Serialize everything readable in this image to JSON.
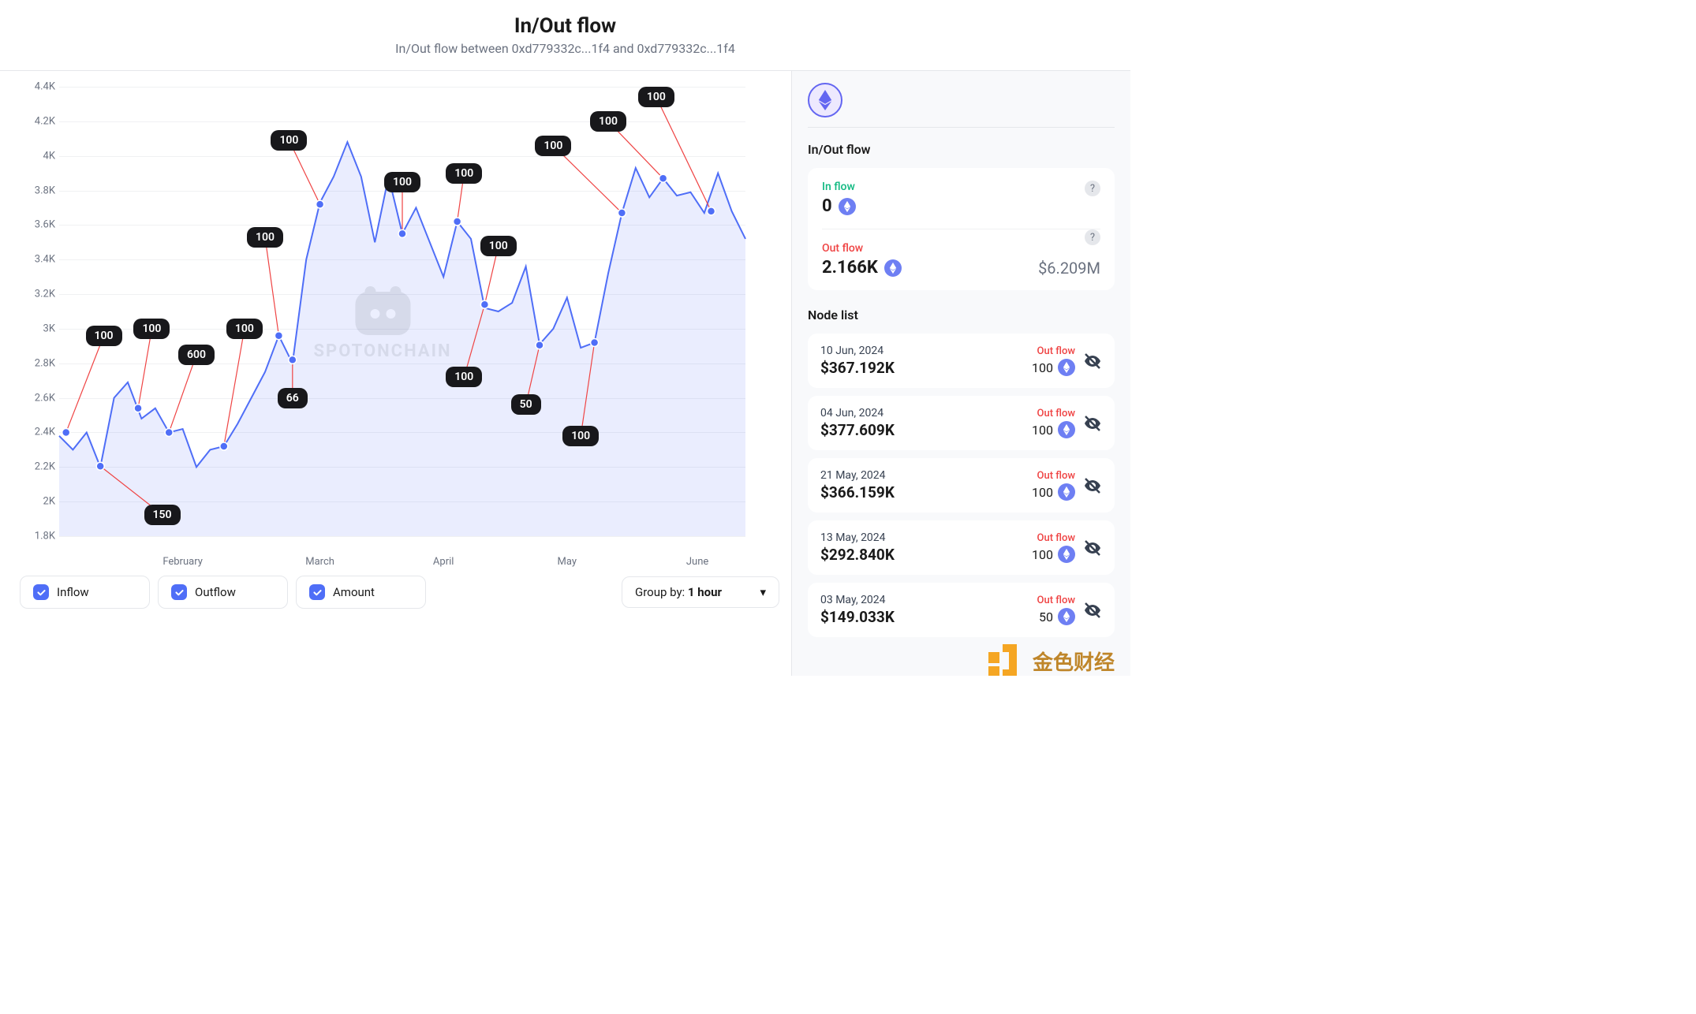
{
  "header": {
    "title": "In/Out flow",
    "subtitle": "In/Out flow between 0xd779332c...1f4 and 0xd779332c...1f4"
  },
  "chart": {
    "type": "line",
    "watermark": "SPOTONCHAIN",
    "y_axis": {
      "min": 1800,
      "max": 4400,
      "step": 200,
      "ticks": [
        "1.8K",
        "2K",
        "2.2K",
        "2.4K",
        "2.6K",
        "2.8K",
        "3K",
        "3.2K",
        "3.4K",
        "3.6K",
        "3.8K",
        "4K",
        "4.2K",
        "4.4K"
      ]
    },
    "x_axis": {
      "ticks": [
        {
          "label": "February",
          "pos": 0.18
        },
        {
          "label": "March",
          "pos": 0.38
        },
        {
          "label": "April",
          "pos": 0.56
        },
        {
          "label": "May",
          "pos": 0.74
        },
        {
          "label": "June",
          "pos": 0.93
        }
      ]
    },
    "line_color": "#4f6ef7",
    "fill_color": "rgba(79,110,247,0.12)",
    "grid_color": "#f0f1f3",
    "marker_color": "#4f6ef7",
    "callout_line_color": "#ef4444",
    "callout_bg": "#18181b",
    "callout_fg": "#ffffff",
    "series": [
      [
        0.0,
        2380
      ],
      [
        0.02,
        2300
      ],
      [
        0.04,
        2400
      ],
      [
        0.06,
        2200
      ],
      [
        0.08,
        2600
      ],
      [
        0.1,
        2690
      ],
      [
        0.12,
        2480
      ],
      [
        0.14,
        2540
      ],
      [
        0.16,
        2400
      ],
      [
        0.18,
        2420
      ],
      [
        0.2,
        2200
      ],
      [
        0.22,
        2300
      ],
      [
        0.24,
        2320
      ],
      [
        0.26,
        2450
      ],
      [
        0.28,
        2600
      ],
      [
        0.3,
        2750
      ],
      [
        0.32,
        2960
      ],
      [
        0.34,
        2800
      ],
      [
        0.36,
        3400
      ],
      [
        0.38,
        3730
      ],
      [
        0.4,
        3880
      ],
      [
        0.42,
        4080
      ],
      [
        0.44,
        3880
      ],
      [
        0.46,
        3500
      ],
      [
        0.48,
        3880
      ],
      [
        0.5,
        3550
      ],
      [
        0.52,
        3700
      ],
      [
        0.54,
        3500
      ],
      [
        0.56,
        3300
      ],
      [
        0.58,
        3620
      ],
      [
        0.6,
        3520
      ],
      [
        0.62,
        3120
      ],
      [
        0.64,
        3100
      ],
      [
        0.66,
        3150
      ],
      [
        0.68,
        3360
      ],
      [
        0.7,
        2910
      ],
      [
        0.72,
        3000
      ],
      [
        0.74,
        3180
      ],
      [
        0.76,
        2890
      ],
      [
        0.78,
        2920
      ],
      [
        0.8,
        3320
      ],
      [
        0.82,
        3670
      ],
      [
        0.84,
        3930
      ],
      [
        0.86,
        3760
      ],
      [
        0.88,
        3870
      ],
      [
        0.9,
        3770
      ],
      [
        0.92,
        3790
      ],
      [
        0.94,
        3670
      ],
      [
        0.96,
        3900
      ],
      [
        0.98,
        3680
      ],
      [
        1.0,
        3520
      ]
    ],
    "callouts": [
      {
        "label": "100",
        "mx": 0.01,
        "my": 2400,
        "lx": 0.065,
        "ly": 2960,
        "align": "ab"
      },
      {
        "label": "150",
        "mx": 0.06,
        "my": 2205,
        "lx": 0.15,
        "ly": 1925,
        "align": "bl"
      },
      {
        "label": "100",
        "mx": 0.115,
        "my": 2540,
        "lx": 0.135,
        "ly": 3000,
        "align": "ab"
      },
      {
        "label": "600",
        "mx": 0.16,
        "my": 2400,
        "lx": 0.2,
        "ly": 2850,
        "align": "ab"
      },
      {
        "label": "100",
        "mx": 0.24,
        "my": 2320,
        "lx": 0.27,
        "ly": 3000,
        "align": "ab"
      },
      {
        "label": "100",
        "mx": 0.32,
        "my": 2960,
        "lx": 0.3,
        "ly": 3530,
        "align": "ab"
      },
      {
        "label": "100",
        "mx": 0.38,
        "my": 3720,
        "lx": 0.335,
        "ly": 4090,
        "align": "ab"
      },
      {
        "label": "66",
        "mx": 0.34,
        "my": 2820,
        "lx": 0.34,
        "ly": 2600,
        "align": "bl"
      },
      {
        "label": "100",
        "mx": 0.5,
        "my": 3550,
        "lx": 0.5,
        "ly": 3850,
        "align": "ab"
      },
      {
        "label": "100",
        "mx": 0.58,
        "my": 3620,
        "lx": 0.59,
        "ly": 3900,
        "align": "ab"
      },
      {
        "label": "100",
        "mx": 0.62,
        "my": 3140,
        "lx": 0.64,
        "ly": 3480,
        "align": "ab"
      },
      {
        "label": "100",
        "mx": 0.62,
        "my": 3140,
        "lx": 0.59,
        "ly": 2720,
        "align": "bl"
      },
      {
        "label": "50",
        "mx": 0.7,
        "my": 2905,
        "lx": 0.68,
        "ly": 2560,
        "align": "bl"
      },
      {
        "label": "100",
        "mx": 0.78,
        "my": 2920,
        "lx": 0.76,
        "ly": 2380,
        "align": "bl"
      },
      {
        "label": "100",
        "mx": 0.82,
        "my": 3670,
        "lx": 0.72,
        "ly": 4060,
        "align": "ab"
      },
      {
        "label": "100",
        "mx": 0.88,
        "my": 3870,
        "lx": 0.8,
        "ly": 4200,
        "align": "ab"
      },
      {
        "label": "100",
        "mx": 0.95,
        "my": 3680,
        "lx": 0.87,
        "ly": 4340,
        "align": "ab"
      }
    ]
  },
  "controls": {
    "toggles": [
      {
        "label": "Inflow",
        "checked": true
      },
      {
        "label": "Outflow",
        "checked": true
      },
      {
        "label": "Amount",
        "checked": true
      }
    ],
    "group_by_prefix": "Group by: ",
    "group_by_value": "1 hour"
  },
  "sidebar": {
    "flow_title": "In/Out flow",
    "inflow": {
      "label": "In flow",
      "value": "0"
    },
    "outflow": {
      "label": "Out flow",
      "value": "2.166K",
      "usd": "$6.209M"
    },
    "node_title": "Node list",
    "nodes": [
      {
        "date": "10 Jun, 2024",
        "usd": "$367.192K",
        "type": "Out flow",
        "qty": "100"
      },
      {
        "date": "04 Jun, 2024",
        "usd": "$377.609K",
        "type": "Out flow",
        "qty": "100"
      },
      {
        "date": "21 May, 2024",
        "usd": "$366.159K",
        "type": "Out flow",
        "qty": "100"
      },
      {
        "date": "13 May, 2024",
        "usd": "$292.840K",
        "type": "Out flow",
        "qty": "100"
      },
      {
        "date": "03 May, 2024",
        "usd": "$149.033K",
        "type": "Out flow",
        "qty": "50"
      }
    ]
  },
  "brand": "金色财经",
  "colors": {
    "inflow": "#10b981",
    "outflow": "#ef4444",
    "accent": "#4f6ef7",
    "brand": "#bf862a"
  }
}
